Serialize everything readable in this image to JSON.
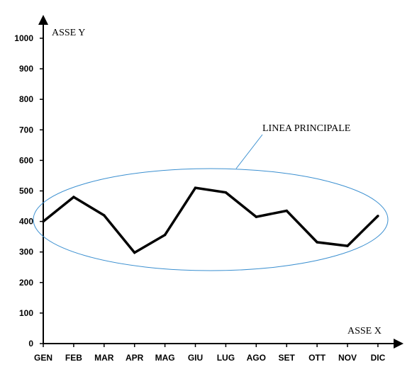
{
  "chart_data": {
    "type": "line",
    "title": "",
    "xlabel": "ASSE X",
    "ylabel": "ASSE Y",
    "categories": [
      "GEN",
      "FEB",
      "MAR",
      "APR",
      "MAG",
      "GIU",
      "LUG",
      "AGO",
      "SET",
      "OTT",
      "NOV",
      "DIC"
    ],
    "series": [
      {
        "values": [
          400,
          480,
          420,
          298,
          356,
          510,
          495,
          415,
          435,
          332,
          320,
          418
        ]
      }
    ],
    "ylim": [
      0,
      1000
    ],
    "yticks": [
      0,
      100,
      200,
      300,
      400,
      500,
      600,
      700,
      800,
      900,
      1000
    ],
    "grid": false,
    "legend": "none",
    "annotation": {
      "text": "LINEA PRINCIPALE",
      "target": "series line enclosed by ellipse"
    },
    "colors": {
      "line": "#000000",
      "axis": "#000000",
      "annotation": "#3a8fd0"
    }
  }
}
